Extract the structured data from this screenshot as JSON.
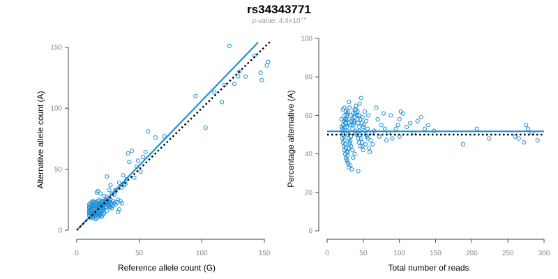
{
  "title": "rs34343771",
  "subtitle": {
    "prefix": "p-value: 4.4×10",
    "exponent": "−3"
  },
  "colors": {
    "points": "#1f8fd6",
    "fit_line": "#1f8fd6",
    "reference_line": "#000000",
    "axis": "#444444",
    "tick_labels": "#888888"
  },
  "chart_data": [
    {
      "type": "scatter",
      "xlabel": "Reference allele count (G)",
      "ylabel": "Alternative allele count (A)",
      "xlim": [
        0,
        155
      ],
      "ylim": [
        0,
        155
      ],
      "xticks": [
        0,
        50,
        100,
        150
      ],
      "yticks": [
        0,
        50,
        100,
        150
      ],
      "grid": false,
      "points": [
        [
          122,
          151
        ],
        [
          142,
          143
        ],
        [
          129,
          126
        ],
        [
          147,
          129
        ],
        [
          152,
          135
        ],
        [
          135,
          126
        ],
        [
          153,
          138
        ],
        [
          110,
          113
        ],
        [
          118,
          119
        ],
        [
          130,
          130
        ],
        [
          148,
          123
        ],
        [
          95,
          110
        ],
        [
          126,
          120
        ],
        [
          116,
          105
        ],
        [
          103,
          84
        ],
        [
          70,
          77
        ],
        [
          57,
          81
        ],
        [
          63,
          76
        ],
        [
          44,
          65
        ],
        [
          42,
          56
        ],
        [
          49,
          57
        ],
        [
          53,
          60
        ],
        [
          46,
          43
        ],
        [
          41,
          63
        ],
        [
          38,
          37
        ],
        [
          36,
          35
        ],
        [
          34,
          39
        ],
        [
          37,
          45
        ],
        [
          48,
          52
        ],
        [
          51,
          48
        ],
        [
          55,
          64
        ],
        [
          31,
          32
        ],
        [
          30,
          29
        ],
        [
          33,
          25
        ],
        [
          31,
          33
        ],
        [
          28,
          30
        ],
        [
          27,
          37
        ],
        [
          26,
          33
        ],
        [
          29,
          24
        ],
        [
          24,
          44
        ],
        [
          26,
          23
        ],
        [
          24,
          27
        ],
        [
          22,
          28
        ],
        [
          19,
          30
        ],
        [
          17,
          32
        ],
        [
          16,
          31
        ],
        [
          20,
          24
        ],
        [
          23,
          22
        ],
        [
          25,
          21
        ],
        [
          27,
          19
        ],
        [
          24,
          16
        ],
        [
          22,
          17
        ],
        [
          21,
          13
        ],
        [
          20,
          11
        ],
        [
          19,
          12
        ],
        [
          18,
          14
        ],
        [
          17,
          11
        ],
        [
          16,
          10
        ],
        [
          15,
          9
        ],
        [
          14,
          12
        ],
        [
          13,
          13
        ],
        [
          12,
          11
        ],
        [
          12,
          15
        ],
        [
          11,
          10
        ],
        [
          10,
          12
        ],
        [
          11,
          17
        ],
        [
          12,
          19
        ],
        [
          13,
          20
        ],
        [
          14,
          21
        ],
        [
          15,
          22
        ],
        [
          16,
          23
        ],
        [
          17,
          24
        ],
        [
          18,
          25
        ],
        [
          19,
          21
        ],
        [
          20,
          19
        ],
        [
          21,
          18
        ],
        [
          22,
          20
        ],
        [
          23,
          19
        ],
        [
          18,
          17
        ],
        [
          17,
          16
        ],
        [
          16,
          15
        ],
        [
          15,
          14
        ],
        [
          14,
          13
        ],
        [
          13,
          12
        ],
        [
          12,
          13
        ],
        [
          11,
          14
        ],
        [
          10,
          15
        ],
        [
          10,
          18
        ],
        [
          11,
          20
        ],
        [
          12,
          21
        ],
        [
          13,
          22
        ],
        [
          14,
          23
        ],
        [
          15,
          18
        ],
        [
          16,
          19
        ],
        [
          17,
          20
        ],
        [
          18,
          21
        ],
        [
          19,
          22
        ],
        [
          20,
          23
        ],
        [
          21,
          24
        ],
        [
          22,
          22
        ],
        [
          23,
          21
        ],
        [
          24,
          22
        ],
        [
          25,
          20
        ],
        [
          26,
          24
        ],
        [
          27,
          25
        ],
        [
          28,
          18
        ],
        [
          22,
          14
        ],
        [
          20,
          15
        ],
        [
          18,
          12
        ],
        [
          16,
          13
        ],
        [
          14,
          15
        ],
        [
          13,
          16
        ],
        [
          12,
          17
        ],
        [
          11,
          18
        ],
        [
          10,
          19
        ],
        [
          10,
          21
        ],
        [
          11,
          22
        ],
        [
          12,
          23
        ],
        [
          13,
          24
        ],
        [
          14,
          17
        ],
        [
          15,
          16
        ],
        [
          16,
          17
        ],
        [
          17,
          18
        ],
        [
          18,
          19
        ],
        [
          19,
          16
        ],
        [
          20,
          17
        ],
        [
          21,
          16
        ],
        [
          19,
          14
        ],
        [
          17,
          13
        ],
        [
          15,
          12
        ],
        [
          13,
          10
        ],
        [
          12,
          12
        ],
        [
          11,
          13
        ],
        [
          10,
          14
        ],
        [
          10,
          16
        ],
        [
          14,
          19
        ],
        [
          15,
          20
        ],
        [
          16,
          21
        ],
        [
          17,
          22
        ],
        [
          18,
          20
        ],
        [
          19,
          18
        ],
        [
          20,
          20
        ],
        [
          21,
          21
        ],
        [
          22,
          24
        ],
        [
          23,
          25
        ],
        [
          24,
          23
        ],
        [
          25,
          24
        ],
        [
          26,
          19
        ],
        [
          27,
          21
        ],
        [
          28,
          22
        ],
        [
          29,
          20
        ],
        [
          30,
          22
        ],
        [
          31,
          21
        ],
        [
          32,
          23
        ],
        [
          35,
          24
        ],
        [
          36,
          22
        ],
        [
          34,
          17
        ],
        [
          33,
          15
        ],
        [
          40,
          42
        ],
        [
          39,
          38
        ]
      ],
      "series": [
        {
          "values": "fit",
          "line": [
            [
              0,
              0
            ],
            [
              145,
              154
            ]
          ]
        },
        {
          "values": "reference",
          "line": [
            [
              0,
              0
            ],
            [
              155,
              155
            ]
          ]
        }
      ]
    },
    {
      "type": "scatter",
      "xlabel": "Total number of reads",
      "ylabel": "Percentage alternative (A)",
      "xlim": [
        0,
        300
      ],
      "ylim": [
        0,
        100
      ],
      "xticks": [
        0,
        50,
        100,
        150,
        200,
        250,
        300
      ],
      "yticks": [
        0,
        20,
        40,
        60,
        80,
        100
      ],
      "grid": false,
      "points": [
        [
          30,
          67
        ],
        [
          31,
          64
        ],
        [
          29,
          62
        ],
        [
          28,
          61
        ],
        [
          27,
          60
        ],
        [
          26,
          58
        ],
        [
          25,
          56
        ],
        [
          24,
          54
        ],
        [
          23,
          52
        ],
        [
          22,
          50
        ],
        [
          21,
          48
        ],
        [
          22,
          46
        ],
        [
          23,
          44
        ],
        [
          24,
          42
        ],
        [
          25,
          40
        ],
        [
          26,
          38
        ],
        [
          27,
          37
        ],
        [
          28,
          36
        ],
        [
          29,
          35
        ],
        [
          30,
          33
        ],
        [
          32,
          34
        ],
        [
          34,
          32
        ],
        [
          36,
          38
        ],
        [
          38,
          40
        ],
        [
          35,
          42
        ],
        [
          33,
          44
        ],
        [
          31,
          46
        ],
        [
          30,
          48
        ],
        [
          29,
          50
        ],
        [
          28,
          52
        ],
        [
          27,
          54
        ],
        [
          26,
          56
        ],
        [
          25,
          58
        ],
        [
          24,
          60
        ],
        [
          23,
          57
        ],
        [
          22,
          55
        ],
        [
          21,
          53
        ],
        [
          22,
          51
        ],
        [
          23,
          49
        ],
        [
          24,
          47
        ],
        [
          25,
          45
        ],
        [
          26,
          43
        ],
        [
          27,
          41
        ],
        [
          28,
          39
        ],
        [
          29,
          41
        ],
        [
          30,
          43
        ],
        [
          31,
          45
        ],
        [
          32,
          47
        ],
        [
          33,
          49
        ],
        [
          34,
          51
        ],
        [
          35,
          53
        ],
        [
          36,
          55
        ],
        [
          37,
          57
        ],
        [
          38,
          59
        ],
        [
          39,
          61
        ],
        [
          40,
          63
        ],
        [
          41,
          60
        ],
        [
          42,
          58
        ],
        [
          43,
          56
        ],
        [
          44,
          54
        ],
        [
          45,
          52
        ],
        [
          46,
          50
        ],
        [
          47,
          48
        ],
        [
          48,
          46
        ],
        [
          49,
          44
        ],
        [
          50,
          42
        ],
        [
          45,
          66
        ],
        [
          47,
          69
        ],
        [
          43,
          31
        ],
        [
          52,
          62
        ],
        [
          54,
          57
        ],
        [
          56,
          53
        ],
        [
          58,
          43
        ],
        [
          60,
          47
        ],
        [
          62,
          51
        ],
        [
          55,
          49
        ],
        [
          53,
          45
        ],
        [
          51,
          55
        ],
        [
          49,
          59
        ],
        [
          57,
          60
        ],
        [
          65,
          52
        ],
        [
          68,
          64
        ],
        [
          72,
          49
        ],
        [
          75,
          55
        ],
        [
          78,
          61
        ],
        [
          82,
          47
        ],
        [
          85,
          51
        ],
        [
          88,
          60
        ],
        [
          95,
          53
        ],
        [
          98,
          55
        ],
        [
          100,
          58
        ],
        [
          102,
          62
        ],
        [
          105,
          61
        ],
        [
          110,
          54
        ],
        [
          115,
          56
        ],
        [
          120,
          51
        ],
        [
          125,
          57
        ],
        [
          130,
          59
        ],
        [
          135,
          53
        ],
        [
          140,
          55
        ],
        [
          148,
          52
        ],
        [
          100,
          49
        ],
        [
          90,
          48
        ],
        [
          80,
          53
        ],
        [
          70,
          58
        ],
        [
          63,
          45
        ],
        [
          59,
          41
        ],
        [
          188,
          45
        ],
        [
          207,
          53
        ],
        [
          224,
          48
        ],
        [
          260,
          49
        ],
        [
          265,
          48
        ],
        [
          272,
          46
        ],
        [
          275,
          55
        ],
        [
          278,
          53
        ],
        [
          283,
          51
        ],
        [
          291,
          47
        ],
        [
          33,
          60
        ],
        [
          35,
          58
        ],
        [
          37,
          56
        ],
        [
          39,
          52
        ],
        [
          41,
          50
        ],
        [
          43,
          48
        ],
        [
          44,
          46
        ],
        [
          46,
          44
        ],
        [
          32,
          55
        ],
        [
          34,
          57
        ],
        [
          36,
          61
        ],
        [
          38,
          63
        ],
        [
          40,
          65
        ],
        [
          42,
          62
        ],
        [
          44,
          60
        ],
        [
          46,
          58
        ],
        [
          48,
          56
        ],
        [
          50,
          54
        ],
        [
          52,
          52
        ],
        [
          54,
          50
        ],
        [
          56,
          48
        ],
        [
          30,
          56
        ],
        [
          28,
          58
        ],
        [
          26,
          62
        ],
        [
          24,
          64
        ],
        [
          22,
          63
        ],
        [
          20,
          58
        ],
        [
          20,
          54
        ]
      ],
      "series": [
        {
          "values": "fit",
          "line": [
            [
              0,
              51.7
            ],
            [
              300,
              51.7
            ]
          ]
        },
        {
          "values": "reference",
          "line": [
            [
              0,
              50
            ],
            [
              300,
              50
            ]
          ]
        }
      ]
    }
  ]
}
